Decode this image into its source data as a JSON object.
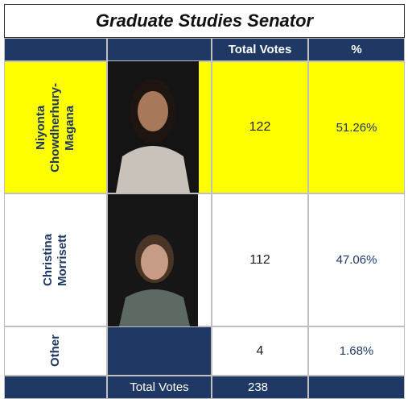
{
  "title": "Graduate Studies Senator",
  "header": {
    "votes": "Total Votes",
    "percent": "%"
  },
  "rows": [
    {
      "name": [
        "Niyonta",
        "Chowdherhury-",
        "Magana"
      ],
      "votes": 122,
      "percent": "51.26%"
    },
    {
      "name": [
        "Christina",
        "Morrisett"
      ],
      "votes": 112,
      "percent": "47.06%"
    },
    {
      "name": [
        "Other"
      ],
      "votes": 4,
      "percent": "1.68%"
    }
  ],
  "footer": {
    "label": "Total Votes",
    "total": 238
  }
}
